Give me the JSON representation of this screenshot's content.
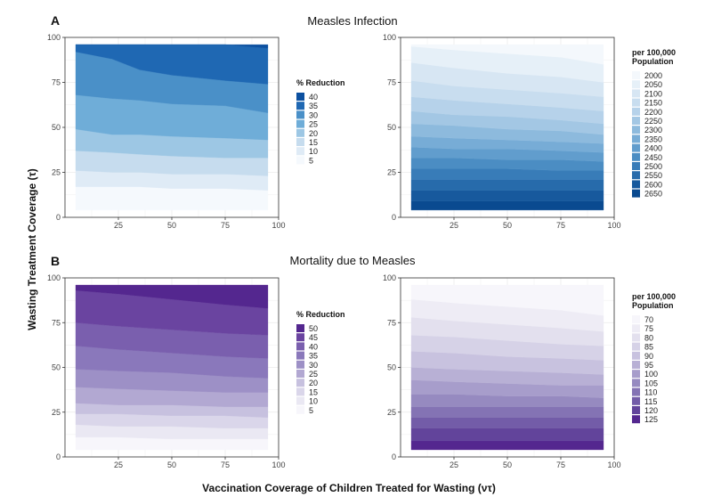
{
  "figure": {
    "ylabel": "Wasting Treatment Coverage (τ)",
    "xlabel": "Vaccination Coverage of Children Treated for Wasting (ντ)"
  },
  "chart_data": [
    {
      "id": "A-left",
      "type": "area",
      "panel_letter": "A",
      "row_title": "Measles Infection",
      "xlim": [
        0,
        100
      ],
      "ylim": [
        0,
        100
      ],
      "xticks": [
        "25",
        "50",
        "75",
        "100"
      ],
      "yticks": [
        "0",
        "25",
        "50",
        "75",
        "100"
      ],
      "x": [
        5,
        22,
        35,
        50,
        75,
        95
      ],
      "boundaries": [
        {
          "level": 5,
          "y": [
            4,
            4,
            4,
            4,
            4,
            4
          ]
        },
        {
          "level": 10,
          "y": [
            17,
            17,
            17,
            16,
            16,
            15
          ]
        },
        {
          "level": 15,
          "y": [
            26,
            25,
            25,
            24,
            24,
            23
          ]
        },
        {
          "level": 20,
          "y": [
            37,
            36,
            35,
            34,
            33,
            33
          ]
        },
        {
          "level": 25,
          "y": [
            49,
            46,
            46,
            45,
            44,
            43
          ]
        },
        {
          "level": 30,
          "y": [
            68,
            66,
            65,
            63,
            62,
            58
          ]
        },
        {
          "level": 35,
          "y": [
            92,
            88,
            82,
            79,
            76,
            74
          ]
        },
        {
          "level": 40,
          "y": [
            96,
            96,
            96,
            96,
            96,
            94
          ]
        }
      ],
      "top": 96,
      "legend": {
        "title": "% Reduction",
        "entries": [
          "40",
          "35",
          "30",
          "25",
          "20",
          "15",
          "10",
          "5"
        ],
        "colors": [
          "#0c50a0",
          "#1f68b3",
          "#4a90c8",
          "#6fadd8",
          "#9dc7e4",
          "#c6dcee",
          "#dfebf6",
          "#f5f9fd"
        ]
      }
    },
    {
      "id": "A-right",
      "type": "area",
      "xlim": [
        0,
        100
      ],
      "ylim": [
        0,
        100
      ],
      "xticks": [
        "25",
        "50",
        "75",
        "100"
      ],
      "yticks": [
        "0",
        "25",
        "50",
        "75",
        "100"
      ],
      "x": [
        5,
        25,
        50,
        75,
        95
      ],
      "boundaries": [
        {
          "level": 2650,
          "y": [
            4,
            4,
            4,
            4,
            4
          ]
        },
        {
          "level": 2600,
          "y": [
            9,
            9,
            9,
            9,
            9
          ]
        },
        {
          "level": 2550,
          "y": [
            15,
            15,
            15,
            15,
            15
          ]
        },
        {
          "level": 2500,
          "y": [
            21,
            21,
            21,
            21,
            21
          ]
        },
        {
          "level": 2450,
          "y": [
            27,
            27,
            27,
            26,
            26
          ]
        },
        {
          "level": 2400,
          "y": [
            33,
            33,
            32,
            32,
            31
          ]
        },
        {
          "level": 2350,
          "y": [
            39,
            38,
            38,
            37,
            36
          ]
        },
        {
          "level": 2300,
          "y": [
            45,
            44,
            43,
            42,
            41
          ]
        },
        {
          "level": 2250,
          "y": [
            52,
            51,
            49,
            48,
            46
          ]
        },
        {
          "level": 2200,
          "y": [
            59,
            57,
            56,
            54,
            52
          ]
        },
        {
          "level": 2150,
          "y": [
            67,
            65,
            63,
            61,
            59
          ]
        },
        {
          "level": 2100,
          "y": [
            76,
            73,
            71,
            69,
            67
          ]
        },
        {
          "level": 2050,
          "y": [
            86,
            83,
            80,
            78,
            75
          ]
        },
        {
          "level": 2000,
          "y": [
            95,
            93,
            91,
            89,
            85
          ]
        }
      ],
      "top": 96,
      "legend": {
        "title": "per 100,000 Population",
        "entries": [
          "2000",
          "2050",
          "2100",
          "2150",
          "2200",
          "2250",
          "2300",
          "2350",
          "2400",
          "2450",
          "2500",
          "2550",
          "2600",
          "2650"
        ],
        "colors": [
          "#f4f8fc",
          "#e6f0f8",
          "#d7e6f3",
          "#c8ddef",
          "#b6d2ea",
          "#a3c7e4",
          "#8dbadd",
          "#77acd6",
          "#619dcd",
          "#4b8dc3",
          "#387cb8",
          "#276bab",
          "#17599d",
          "#0a4a90"
        ]
      }
    },
    {
      "id": "B-left",
      "type": "area",
      "panel_letter": "B",
      "row_title": "Mortality due to Measles",
      "xlim": [
        0,
        100
      ],
      "ylim": [
        0,
        100
      ],
      "xticks": [
        "25",
        "50",
        "75",
        "100"
      ],
      "yticks": [
        "0",
        "25",
        "50",
        "75",
        "100"
      ],
      "x": [
        5,
        25,
        50,
        75,
        95
      ],
      "boundaries": [
        {
          "level": 5,
          "y": [
            4,
            4,
            4,
            4,
            4
          ]
        },
        {
          "level": 10,
          "y": [
            11,
            11,
            10,
            10,
            10
          ]
        },
        {
          "level": 15,
          "y": [
            18,
            17,
            17,
            16,
            16
          ]
        },
        {
          "level": 20,
          "y": [
            24,
            24,
            23,
            23,
            22
          ]
        },
        {
          "level": 25,
          "y": [
            30,
            29,
            29,
            28,
            28
          ]
        },
        {
          "level": 30,
          "y": [
            39,
            38,
            37,
            36,
            36
          ]
        },
        {
          "level": 35,
          "y": [
            49,
            48,
            47,
            45,
            44
          ]
        },
        {
          "level": 40,
          "y": [
            62,
            60,
            58,
            56,
            55
          ]
        },
        {
          "level": 45,
          "y": [
            75,
            73,
            71,
            69,
            68
          ]
        },
        {
          "level": 50,
          "y": [
            93,
            91,
            88,
            85,
            83
          ]
        }
      ],
      "top": 96,
      "legend": {
        "title": "% Reduction",
        "entries": [
          "50",
          "45",
          "40",
          "35",
          "30",
          "25",
          "20",
          "15",
          "10",
          "5"
        ],
        "colors": [
          "#54278f",
          "#6a44a0",
          "#7a5fae",
          "#8a78bb",
          "#9d90c6",
          "#b2a8d2",
          "#c7c1df",
          "#dad6ea",
          "#eae8f3",
          "#f7f6fb"
        ]
      }
    },
    {
      "id": "B-right",
      "type": "area",
      "xlim": [
        0,
        100
      ],
      "ylim": [
        0,
        100
      ],
      "xticks": [
        "25",
        "50",
        "75",
        "100"
      ],
      "yticks": [
        "0",
        "25",
        "50",
        "75",
        "100"
      ],
      "x": [
        5,
        25,
        50,
        75,
        95
      ],
      "boundaries": [
        {
          "level": 125,
          "y": [
            4,
            4,
            4,
            4,
            4
          ]
        },
        {
          "level": 120,
          "y": [
            9,
            9,
            9,
            9,
            9
          ]
        },
        {
          "level": 115,
          "y": [
            16,
            16,
            16,
            16,
            16
          ]
        },
        {
          "level": 110,
          "y": [
            22,
            22,
            22,
            22,
            22
          ]
        },
        {
          "level": 105,
          "y": [
            28,
            28,
            28,
            28,
            28
          ]
        },
        {
          "level": 100,
          "y": [
            35,
            35,
            34,
            34,
            33
          ]
        },
        {
          "level": 95,
          "y": [
            43,
            42,
            41,
            40,
            40
          ]
        },
        {
          "level": 90,
          "y": [
            50,
            49,
            48,
            47,
            46
          ]
        },
        {
          "level": 85,
          "y": [
            59,
            58,
            56,
            55,
            54
          ]
        },
        {
          "level": 80,
          "y": [
            68,
            67,
            65,
            63,
            62
          ]
        },
        {
          "level": 75,
          "y": [
            78,
            76,
            74,
            72,
            70
          ]
        },
        {
          "level": 70,
          "y": [
            88,
            86,
            84,
            82,
            79
          ]
        }
      ],
      "top": 96,
      "legend": {
        "title": "per 100,000 Population",
        "entries": [
          "70",
          "75",
          "80",
          "85",
          "90",
          "95",
          "100",
          "105",
          "110",
          "115",
          "120",
          "125"
        ],
        "colors": [
          "#f7f6fb",
          "#eeecf5",
          "#e3e0ee",
          "#d6d2e7",
          "#c8c2df",
          "#b8b0d5",
          "#a79dcb",
          "#968ac0",
          "#8473b4",
          "#735ca8",
          "#62449b",
          "#54278f"
        ]
      }
    }
  ]
}
